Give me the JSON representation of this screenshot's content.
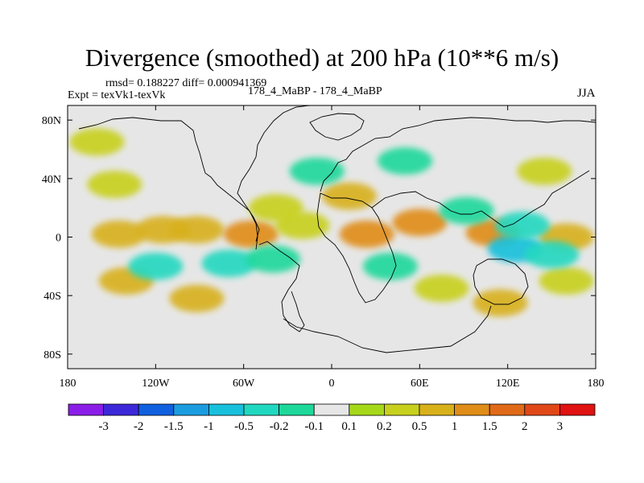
{
  "chart_data": {
    "type": "heatmap",
    "title": "Divergence (smoothed) at 200 hPa (10**6 m/s)",
    "stats": "rmsd= 0.188227 diff= 0.000941369",
    "experiment": "Expt = texVk1-texVk",
    "case": "178_4_MaBP - 178_4_MaBP",
    "season": "JJA",
    "xlim": [
      -180,
      180
    ],
    "ylim": [
      -90,
      90
    ],
    "x_ticks": [
      {
        "value": -180,
        "label": "180"
      },
      {
        "value": -120,
        "label": "120W"
      },
      {
        "value": -60,
        "label": "60W"
      },
      {
        "value": 0,
        "label": "0"
      },
      {
        "value": 60,
        "label": "60E"
      },
      {
        "value": 120,
        "label": "120E"
      },
      {
        "value": 180,
        "label": "180"
      }
    ],
    "y_ticks": [
      {
        "value": 80,
        "label": "80N"
      },
      {
        "value": 40,
        "label": "40N"
      },
      {
        "value": 0,
        "label": "0"
      },
      {
        "value": -40,
        "label": "40S"
      },
      {
        "value": -80,
        "label": "80S"
      }
    ],
    "colorbar": {
      "colors": [
        "#8a1ee8",
        "#3c28d8",
        "#1060e0",
        "#1c9ce0",
        "#18c0dc",
        "#20d8c0",
        "#1ed89a",
        "#e6e6e6",
        "#a6d81a",
        "#c8d01e",
        "#d8b01a",
        "#e08c18",
        "#e06a18",
        "#e04818",
        "#e01212"
      ],
      "levels": [
        "-3",
        "-2",
        "-1.5",
        "-1",
        "-0.5",
        "-0.2",
        "-0.1",
        "0.1",
        "0.2",
        "0.5",
        "1",
        "1.5",
        "2",
        "3"
      ]
    },
    "blobs": [
      {
        "lon": -160,
        "lat": 65,
        "value": 0.2
      },
      {
        "lon": -148,
        "lat": 36,
        "value": 0.2
      },
      {
        "lon": -145,
        "lat": 2,
        "value": 0.5
      },
      {
        "lon": -115,
        "lat": 5,
        "value": 0.5
      },
      {
        "lon": -92,
        "lat": 5,
        "value": 0.5
      },
      {
        "lon": -55,
        "lat": 2,
        "value": 1
      },
      {
        "lon": -38,
        "lat": 20,
        "value": 0.2
      },
      {
        "lon": -20,
        "lat": 8,
        "value": 0.2
      },
      {
        "lon": 12,
        "lat": 28,
        "value": 0.5
      },
      {
        "lon": 24,
        "lat": 2,
        "value": 1
      },
      {
        "lon": 60,
        "lat": 10,
        "value": 1
      },
      {
        "lon": 110,
        "lat": 3,
        "value": 1
      },
      {
        "lon": 160,
        "lat": 0,
        "value": 0.5
      },
      {
        "lon": 145,
        "lat": 45,
        "value": 0.2
      },
      {
        "lon": -140,
        "lat": -30,
        "value": 0.5
      },
      {
        "lon": -92,
        "lat": -42,
        "value": 0.5
      },
      {
        "lon": 75,
        "lat": -35,
        "value": 0.2
      },
      {
        "lon": 115,
        "lat": -45,
        "value": 0.5
      },
      {
        "lon": 160,
        "lat": -30,
        "value": 0.2
      },
      {
        "lon": -120,
        "lat": -20,
        "value": -0.5
      },
      {
        "lon": -70,
        "lat": -18,
        "value": -0.5
      },
      {
        "lon": -40,
        "lat": -15,
        "value": -0.2
      },
      {
        "lon": 40,
        "lat": -20,
        "value": -0.2
      },
      {
        "lon": 125,
        "lat": -8,
        "value": -1
      },
      {
        "lon": 150,
        "lat": -12,
        "value": -0.5
      },
      {
        "lon": 130,
        "lat": 8,
        "value": -0.5
      },
      {
        "lon": 92,
        "lat": 18,
        "value": -0.2
      },
      {
        "lon": 50,
        "lat": 52,
        "value": -0.2
      },
      {
        "lon": -10,
        "lat": 45,
        "value": -0.2
      }
    ]
  }
}
